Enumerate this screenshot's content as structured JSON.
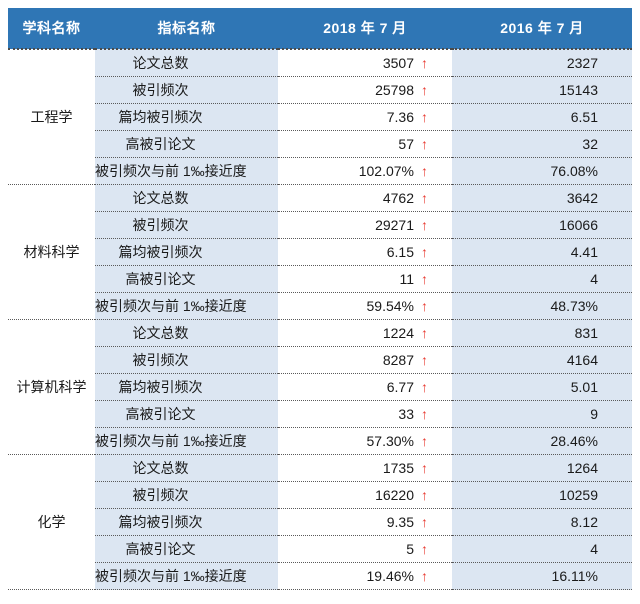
{
  "table": {
    "headers": {
      "subject": "学科名称",
      "indicator": "指标名称",
      "period_2018": "2018 年 7 月",
      "period_2016": "2016 年 7 月"
    },
    "arrow_icon": "↑",
    "colors": {
      "header_bg": "#2f76b5",
      "band_bg": "#dce6f2",
      "arrow_red": "#e8392f",
      "header_text": "#ffffff",
      "body_text": "#1a1a1a"
    },
    "groups": [
      {
        "subject": "工程学",
        "rows": [
          {
            "indicator": "论文总数",
            "v2018": "3507",
            "up": true,
            "v2016": "2327"
          },
          {
            "indicator": "被引频次",
            "v2018": "25798",
            "up": true,
            "v2016": "15143"
          },
          {
            "indicator": "篇均被引频次",
            "v2018": "7.36",
            "up": true,
            "v2016": "6.51"
          },
          {
            "indicator": "高被引论文",
            "v2018": "57",
            "up": true,
            "v2016": "32"
          },
          {
            "indicator": "被引频次与前 1‰接近度",
            "v2018": "102.07%",
            "up": true,
            "v2016": "76.08%"
          }
        ]
      },
      {
        "subject": "材料科学",
        "rows": [
          {
            "indicator": "论文总数",
            "v2018": "4762",
            "up": true,
            "v2016": "3642"
          },
          {
            "indicator": "被引频次",
            "v2018": "29271",
            "up": true,
            "v2016": "16066"
          },
          {
            "indicator": "篇均被引频次",
            "v2018": "6.15",
            "up": true,
            "v2016": "4.41"
          },
          {
            "indicator": "高被引论文",
            "v2018": "11",
            "up": true,
            "v2016": "4"
          },
          {
            "indicator": "被引频次与前 1‰接近度",
            "v2018": "59.54%",
            "up": true,
            "v2016": "48.73%"
          }
        ]
      },
      {
        "subject": "计算机科学",
        "rows": [
          {
            "indicator": "论文总数",
            "v2018": "1224",
            "up": true,
            "v2016": "831"
          },
          {
            "indicator": "被引频次",
            "v2018": "8287",
            "up": true,
            "v2016": "4164"
          },
          {
            "indicator": "篇均被引频次",
            "v2018": "6.77",
            "up": true,
            "v2016": "5.01"
          },
          {
            "indicator": "高被引论文",
            "v2018": "33",
            "up": true,
            "v2016": "9"
          },
          {
            "indicator": "被引频次与前 1‰接近度",
            "v2018": "57.30%",
            "up": true,
            "v2016": "28.46%"
          }
        ]
      },
      {
        "subject": "化学",
        "rows": [
          {
            "indicator": "论文总数",
            "v2018": "1735",
            "up": true,
            "v2016": "1264"
          },
          {
            "indicator": "被引频次",
            "v2018": "16220",
            "up": true,
            "v2016": "10259"
          },
          {
            "indicator": "篇均被引频次",
            "v2018": "9.35",
            "up": true,
            "v2016": "8.12"
          },
          {
            "indicator": "高被引论文",
            "v2018": "5",
            "up": true,
            "v2016": "4"
          },
          {
            "indicator": "被引频次与前 1‰接近度",
            "v2018": "19.46%",
            "up": true,
            "v2016": "16.11%"
          }
        ]
      }
    ]
  }
}
